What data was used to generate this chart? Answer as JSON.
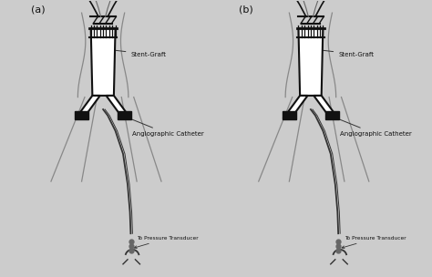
{
  "background_color": "#cccccc",
  "border_color": "#555555",
  "title": "",
  "panel_a_label": "(a)",
  "panel_b_label": "(b)",
  "label_stent_graft": "Stent-Graft",
  "label_angio_catheter": "Angiographic Catheter",
  "label_pressure": "To Pressure Transducer",
  "text_color": "#111111",
  "line_color": "#333333",
  "stent_color": "#ffffff",
  "stent_border": "#111111",
  "black_band": "#111111",
  "gray_vessel": "#888888",
  "light_gray": "#bbbbbb"
}
